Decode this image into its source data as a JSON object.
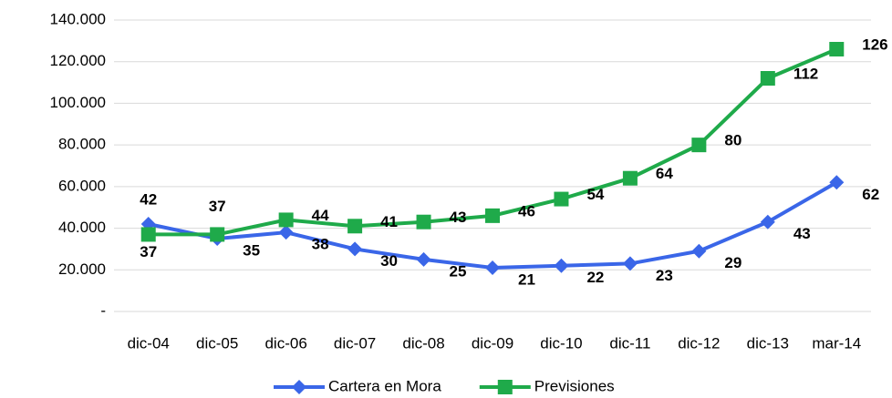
{
  "chart_data": {
    "type": "line",
    "categories": [
      "dic-04",
      "dic-05",
      "dic-06",
      "dic-07",
      "dic-08",
      "dic-09",
      "dic-10",
      "dic-11",
      "dic-12",
      "dic-13",
      "mar-14"
    ],
    "series": [
      {
        "name": "Cartera en Mora",
        "color": "#3a66e8",
        "marker": "diamond",
        "values": [
          42000,
          35000,
          38000,
          30000,
          25000,
          21000,
          22000,
          23000,
          29000,
          43000,
          62000
        ],
        "value_labels": [
          "42",
          "35",
          "38",
          "30",
          "25",
          "21",
          "22",
          "23",
          "29",
          "43",
          "62"
        ]
      },
      {
        "name": "Previsiones",
        "color": "#1faa4a",
        "marker": "square",
        "values": [
          37000,
          37000,
          44000,
          41000,
          43000,
          46000,
          54000,
          64000,
          80000,
          112000,
          126000
        ],
        "value_labels": [
          "37",
          "37",
          "44",
          "41",
          "43",
          "46",
          "54",
          "64",
          "80",
          "112",
          "126"
        ]
      }
    ],
    "ylim": [
      0,
      140000
    ],
    "yticks": [
      {
        "value": 0,
        "label": "-"
      },
      {
        "value": 20000,
        "label": "20.000"
      },
      {
        "value": 40000,
        "label": "40.000"
      },
      {
        "value": 60000,
        "label": "60.000"
      },
      {
        "value": 80000,
        "label": "80.000"
      },
      {
        "value": 100000,
        "label": "100.000"
      },
      {
        "value": 120000,
        "label": "120.000"
      },
      {
        "value": 140000,
        "label": "140.000"
      }
    ],
    "grid": true,
    "legend": "bottom"
  }
}
